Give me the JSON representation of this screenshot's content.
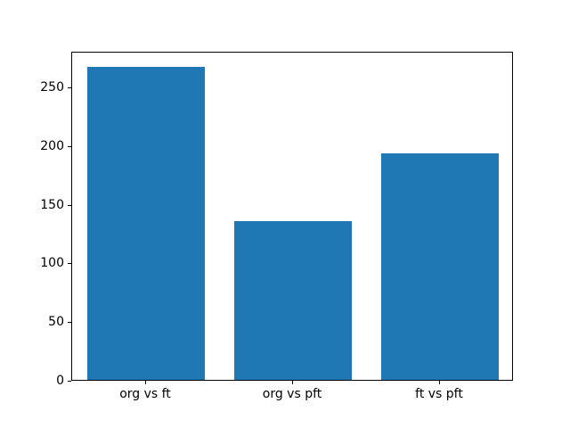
{
  "figure": {
    "background_color": "#ffffff",
    "spine_color": "#000000",
    "text_color": "#000000"
  },
  "chart_data": {
    "type": "bar",
    "categories": [
      "org vs ft",
      "org vs pft",
      "ft vs pft"
    ],
    "values": [
      267,
      135,
      193
    ],
    "title": "",
    "xlabel": "",
    "ylabel": "",
    "ylim": [
      0,
      280.35
    ],
    "yticks": [
      0,
      50,
      100,
      150,
      200,
      250
    ],
    "bar_color": "#1f77b4",
    "bar_width_fraction": 0.8,
    "grid": false,
    "legend": null
  }
}
